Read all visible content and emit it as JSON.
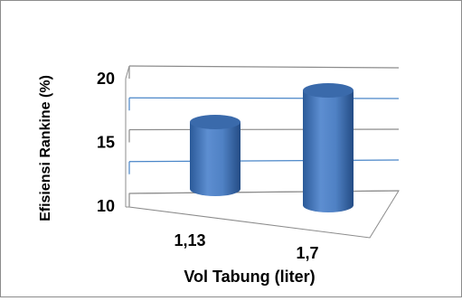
{
  "chart_data": {
    "type": "bar",
    "style": "3d-cylinder",
    "categories": [
      "1,13",
      "1,7"
    ],
    "values": [
      15.2,
      17.6
    ],
    "xlabel": "Vol Tabung (liter)",
    "ylabel": "Efisiensi Rankine (%)",
    "ylim": [
      10,
      20
    ],
    "yticks": [
      "10",
      "15",
      "20"
    ],
    "grid": true,
    "legend": "none",
    "colors": {
      "bar": "#4a7ebb",
      "grid_major": "#8c8c8c",
      "grid_minor": "#4a86c8"
    }
  }
}
